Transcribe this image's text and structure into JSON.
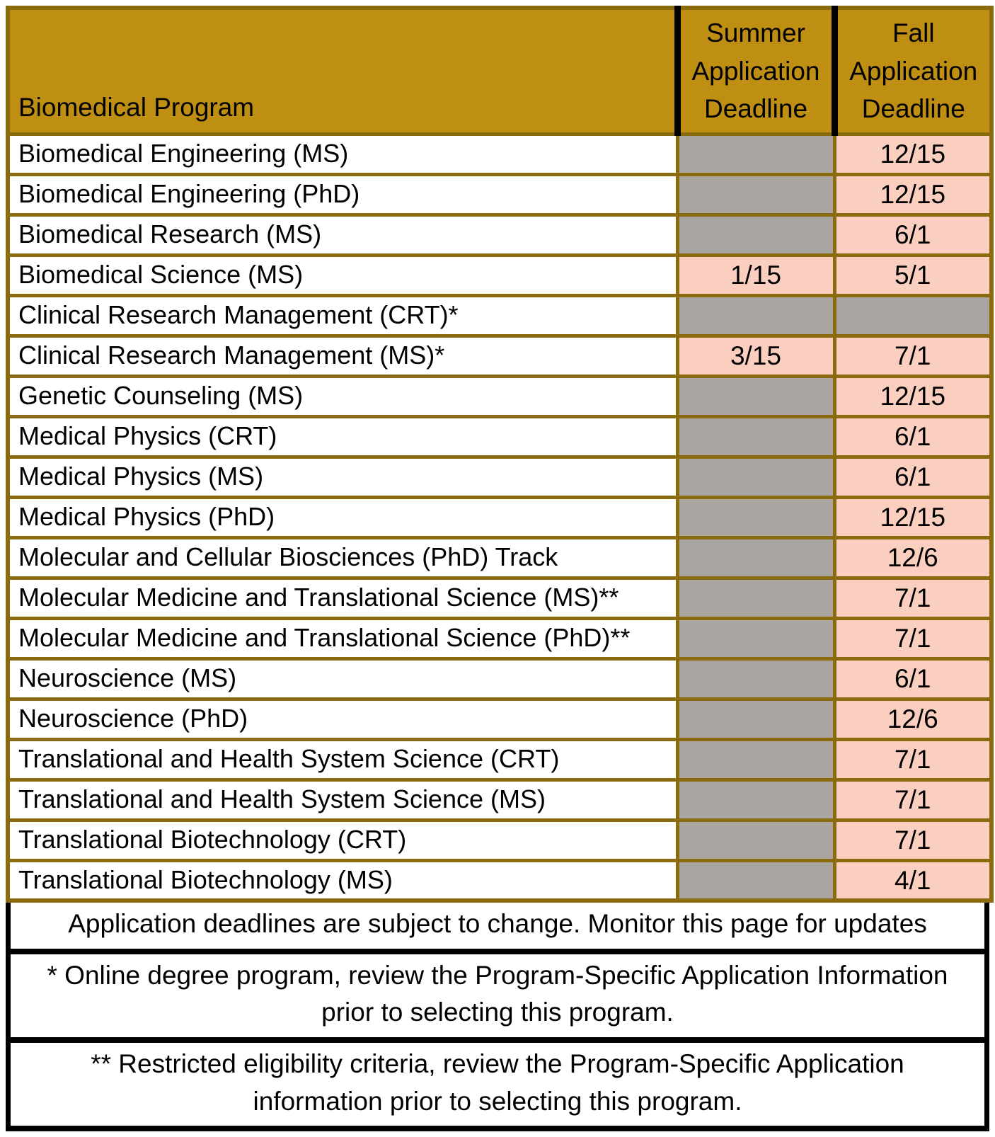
{
  "colors": {
    "header_bg": "#BE8F12",
    "border_olive": "#8A6B10",
    "empty_cell_bg": "#ABA5A2",
    "date_cell_bg": "#FBCFC0",
    "notes_border": "#000000",
    "text": "#000000"
  },
  "table": {
    "columns": [
      {
        "label": "Biomedical Program"
      },
      {
        "label": "Summer Application Deadline"
      },
      {
        "label": "Fall Application Deadline"
      }
    ],
    "rows": [
      {
        "program": "Biomedical Engineering (MS)",
        "summer": "",
        "fall": "12/15"
      },
      {
        "program": "Biomedical Engineering (PhD)",
        "summer": "",
        "fall": "12/15"
      },
      {
        "program": "Biomedical Research (MS)",
        "summer": "",
        "fall": "6/1"
      },
      {
        "program": "Biomedical Science (MS)",
        "summer": "1/15",
        "fall": "5/1"
      },
      {
        "program": "Clinical Research Management (CRT)*",
        "summer": "",
        "fall": ""
      },
      {
        "program": "Clinical Research Management (MS)*",
        "summer": "3/15",
        "fall": "7/1"
      },
      {
        "program": "Genetic Counseling (MS)",
        "summer": "",
        "fall": "12/15"
      },
      {
        "program": "Medical Physics (CRT)",
        "summer": "",
        "fall": "6/1"
      },
      {
        "program": "Medical Physics (MS)",
        "summer": "",
        "fall": "6/1"
      },
      {
        "program": "Medical Physics (PhD)",
        "summer": "",
        "fall": "12/15"
      },
      {
        "program": "Molecular and Cellular Biosciences (PhD) Track",
        "summer": "",
        "fall": "12/6"
      },
      {
        "program": "Molecular Medicine and Translational Science (MS)**",
        "summer": "",
        "fall": "7/1"
      },
      {
        "program": "Molecular Medicine and Translational Science (PhD)**",
        "summer": "",
        "fall": "7/1"
      },
      {
        "program": "Neuroscience (MS)",
        "summer": "",
        "fall": "6/1"
      },
      {
        "program": "Neuroscience (PhD)",
        "summer": "",
        "fall": "12/6"
      },
      {
        "program": "Translational and Health System Science (CRT)",
        "summer": "",
        "fall": "7/1"
      },
      {
        "program": "Translational and Health System Science (MS)",
        "summer": "",
        "fall": "7/1"
      },
      {
        "program": "Translational Biotechnology (CRT)",
        "summer": "",
        "fall": "7/1"
      },
      {
        "program": "Translational Biotechnology (MS)",
        "summer": "",
        "fall": "4/1"
      }
    ]
  },
  "notes": [
    {
      "lines": [
        "Application deadlines are subject to change. Monitor this page for updates"
      ]
    },
    {
      "lines": [
        "* Online degree program, review the Program-Specific Application Information",
        "prior to selecting this program."
      ]
    },
    {
      "lines": [
        "** Restricted eligibility criteria, review the Program-Specific Application",
        "information prior to selecting this program."
      ]
    }
  ]
}
